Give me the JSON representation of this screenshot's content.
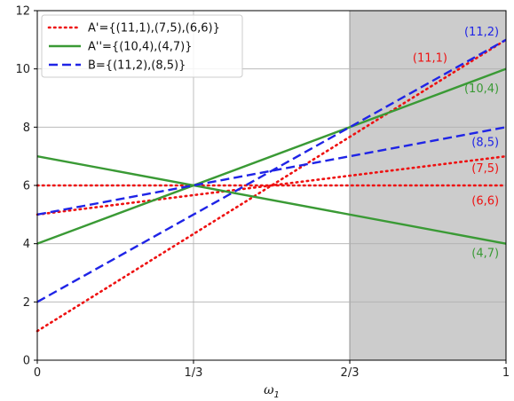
{
  "chart_data": {
    "type": "line",
    "xlabel": "ω",
    "xlabel_subscript": "1",
    "ylabel": "",
    "xlim": [
      0,
      1
    ],
    "ylim": [
      0,
      12
    ],
    "x_ticks": [
      {
        "value": 0,
        "label": "0"
      },
      {
        "value": 0.3333,
        "label": "1/3"
      },
      {
        "value": 0.6667,
        "label": "2/3"
      },
      {
        "value": 1,
        "label": "1"
      }
    ],
    "y_ticks": [
      0,
      2,
      4,
      6,
      8,
      10,
      12
    ],
    "grid": true,
    "shaded_region": {
      "x_from": 0.6667,
      "x_to": 1,
      "color": "#cccccc"
    },
    "legend_position": "upper-left",
    "series": [
      {
        "name": "A'={(11,1),(7,5),(6,6)}",
        "color": "#ee1111",
        "style": "dotted",
        "lines": [
          {
            "label": "(11,1)",
            "points": [
              [
                0,
                1
              ],
              [
                1,
                11
              ]
            ]
          },
          {
            "label": "(7,5)",
            "points": [
              [
                0,
                5
              ],
              [
                1,
                7
              ]
            ]
          },
          {
            "label": "(6,6)",
            "points": [
              [
                0,
                6
              ],
              [
                1,
                6
              ]
            ]
          }
        ]
      },
      {
        "name": "A''={(10,4),(4,7)}",
        "color": "#3a9a35",
        "style": "solid",
        "lines": [
          {
            "label": "(10,4)",
            "points": [
              [
                0,
                4
              ],
              [
                1,
                10
              ]
            ]
          },
          {
            "label": "(4,7)",
            "points": [
              [
                0,
                7
              ],
              [
                1,
                4
              ]
            ]
          }
        ]
      },
      {
        "name": "B={(11,2),(8,5)}",
        "color": "#1f24e6",
        "style": "dashed",
        "lines": [
          {
            "label": "(11,2)",
            "points": [
              [
                0,
                2
              ],
              [
                1,
                11
              ]
            ]
          },
          {
            "label": "(8,5)",
            "points": [
              [
                0,
                5
              ],
              [
                1,
                8
              ]
            ]
          }
        ]
      }
    ],
    "annotations": [
      {
        "text": "(11,2)",
        "x": 0.985,
        "y": 11.15,
        "color": "#1f24e6"
      },
      {
        "text": "(11,1)",
        "x": 0.875,
        "y": 10.25,
        "color": "#ee1111"
      },
      {
        "text": "(10,4)",
        "x": 0.985,
        "y": 9.2,
        "color": "#3a9a35"
      },
      {
        "text": "(8,5)",
        "x": 0.985,
        "y": 7.35,
        "color": "#1f24e6"
      },
      {
        "text": "(7,5)",
        "x": 0.985,
        "y": 6.45,
        "color": "#ee1111"
      },
      {
        "text": "(6,6)",
        "x": 0.985,
        "y": 5.35,
        "color": "#ee1111"
      },
      {
        "text": "(4,7)",
        "x": 0.985,
        "y": 3.55,
        "color": "#3a9a35"
      }
    ]
  }
}
